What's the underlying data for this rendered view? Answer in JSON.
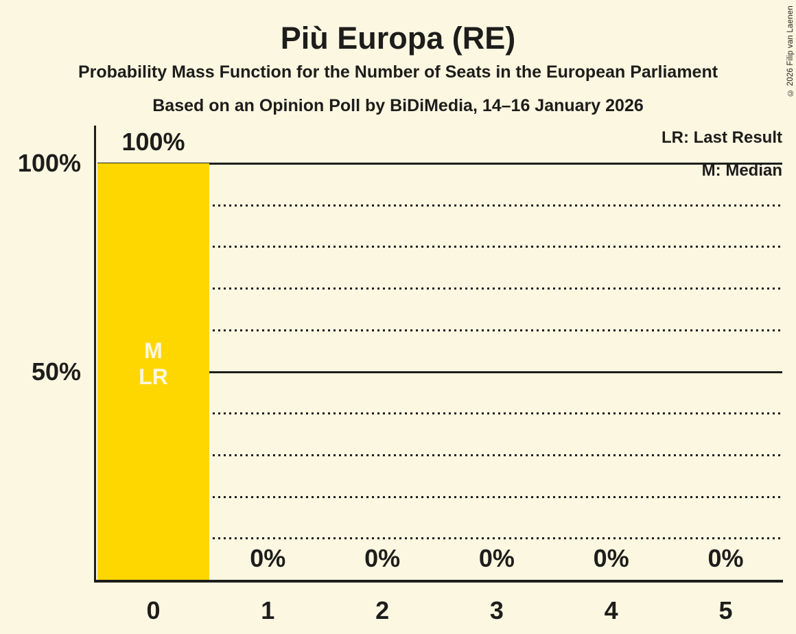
{
  "title": "Più Europa (RE)",
  "subtitle1": "Probability Mass Function for the Number of Seats in the European Parliament",
  "subtitle2": "Based on an Opinion Poll by BiDiMedia, 14–16 January 2026",
  "copyright": "© 2026 Filip van Laenen",
  "legend": {
    "lr": "LR: Last Result",
    "m": "M: Median"
  },
  "colors": {
    "background": "#FCF7E1",
    "bar": "#FFD700",
    "text": "#1D1D1B",
    "bar_label_text": "#FCF7E1"
  },
  "chart_data": {
    "type": "bar",
    "title": "Più Europa (RE)",
    "categories": [
      "0",
      "1",
      "2",
      "3",
      "4",
      "5"
    ],
    "values": [
      100,
      0,
      0,
      0,
      0,
      0
    ],
    "value_labels": [
      "100%",
      "0%",
      "0%",
      "0%",
      "0%",
      "0%"
    ],
    "xlabel": "",
    "ylabel": "",
    "ylim": [
      0,
      100
    ],
    "y_ticks": [
      {
        "value": 100,
        "label": "100%"
      },
      {
        "value": 50,
        "label": "50%"
      }
    ],
    "solid_gridlines": [
      100,
      50
    ],
    "dotted_gridlines": [
      90,
      80,
      70,
      60,
      40,
      30,
      20,
      10
    ],
    "grid": "horizontal-only",
    "legend_position": "top-right",
    "markers": {
      "category": "0",
      "lines": [
        "M",
        "LR"
      ],
      "meaning": {
        "M": "Median",
        "LR": "Last Result"
      }
    },
    "median_seats": 0,
    "last_result_seats": 0
  }
}
